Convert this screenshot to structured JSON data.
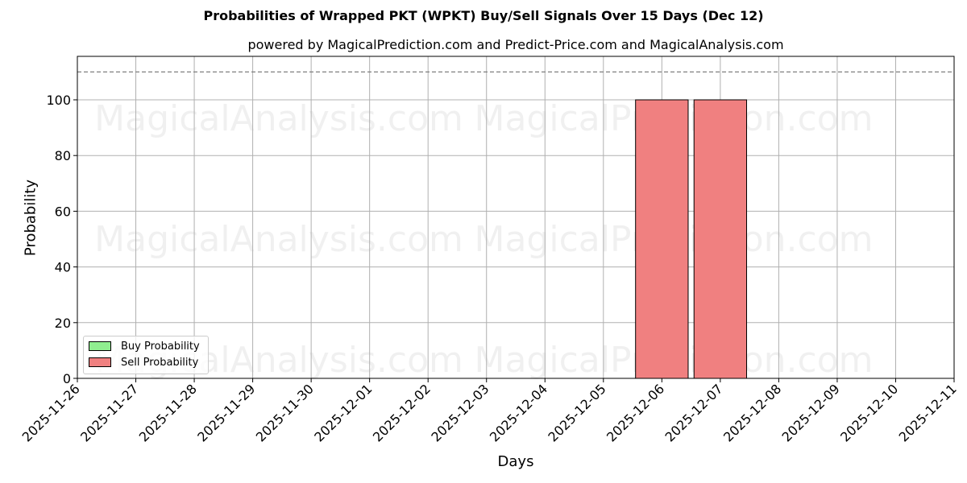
{
  "title": "Probabilities of Wrapped PKT (WPKT) Buy/Sell Signals Over 15 Days (Dec 12)",
  "subtitle": "powered by MagicalPrediction.com and Predict-Price.com and MagicalAnalysis.com",
  "watermarks": [
    "MagicalAnalysis.com",
    "MagicalPrediction.com"
  ],
  "legend": {
    "buy": "Buy Probability",
    "sell": "Sell Probability"
  },
  "colors": {
    "buy": "#90ee90",
    "sell": "#f08080",
    "threshold": "#808080"
  },
  "chart_data": {
    "type": "bar",
    "title": "Probabilities of Wrapped PKT (WPKT) Buy/Sell Signals Over 15 Days (Dec 12)",
    "subtitle": "powered by MagicalPrediction.com and Predict-Price.com and MagicalAnalysis.com",
    "xlabel": "Days",
    "ylabel": "Probability",
    "ylim": [
      0,
      115
    ],
    "yticks": [
      0,
      20,
      40,
      60,
      80,
      100
    ],
    "threshold_line": 110,
    "grid": true,
    "legend_position": "lower left",
    "categories": [
      "2025-11-26",
      "2025-11-27",
      "2025-11-28",
      "2025-11-29",
      "2025-11-30",
      "2025-12-01",
      "2025-12-02",
      "2025-12-03",
      "2025-12-04",
      "2025-12-05",
      "2025-12-06",
      "2025-12-07",
      "2025-12-08",
      "2025-12-09",
      "2025-12-10",
      "2025-12-11"
    ],
    "series": [
      {
        "name": "Buy Probability",
        "values": [
          0,
          0,
          0,
          0,
          0,
          0,
          0,
          0,
          0,
          0,
          0,
          0,
          0,
          0,
          0,
          0
        ]
      },
      {
        "name": "Sell Probability",
        "values": [
          0,
          0,
          0,
          0,
          0,
          0,
          0,
          0,
          0,
          0,
          100,
          100,
          0,
          0,
          0,
          0
        ]
      }
    ]
  }
}
